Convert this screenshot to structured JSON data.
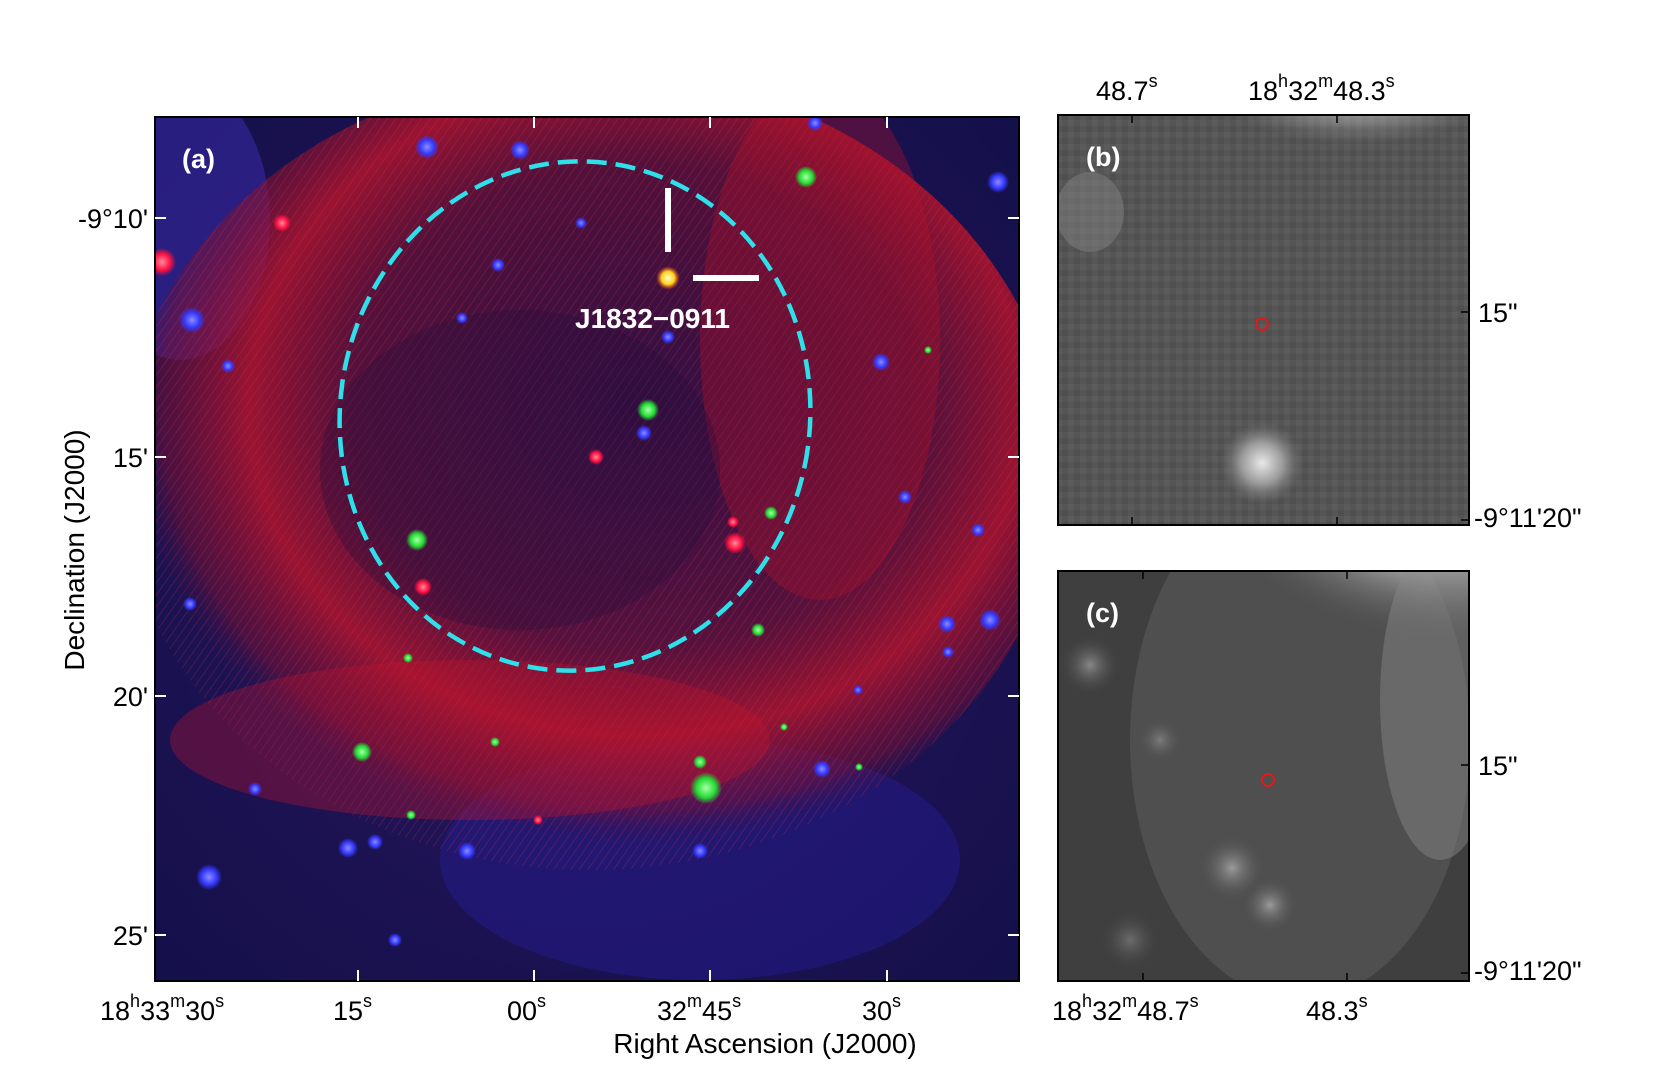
{
  "panel_a": {
    "label": "(a)",
    "source_label": "J1832−0911",
    "x_axis_label": "Right Ascension (J2000)",
    "y_axis_label": "Declination (J2000)",
    "x_ticks": [
      {
        "main": "18",
        "s1": "h",
        "mid": "33",
        "s2": "m",
        "end": "30",
        "s3": "s"
      },
      {
        "main": "15",
        "s3": "s"
      },
      {
        "main": "00",
        "s3": "s"
      },
      {
        "main": "32",
        "s2": "m",
        "end": "45",
        "s3": "s"
      },
      {
        "main": "30",
        "s3": "s"
      }
    ],
    "y_ticks": [
      "-9°10'",
      "15'",
      "20'",
      "25'"
    ],
    "colors": {
      "ellipse": "#2ee0ea",
      "background": "#1a0f4a",
      "shell": "#b0102a"
    }
  },
  "panel_b": {
    "label": "(b)",
    "top_ticks": [
      {
        "main": "48.7",
        "s3": "s"
      },
      {
        "main": "18",
        "s1": "h",
        "mid": "32",
        "s2": "m",
        "end": "48.3",
        "s3": "s"
      }
    ],
    "right_ticks": [
      "15\"",
      "-9°11'20\""
    ]
  },
  "panel_c": {
    "label": "(c)",
    "bottom_ticks": [
      {
        "main": "18",
        "s1": "h",
        "mid": "32",
        "s2": "m",
        "end": "48.7",
        "s3": "s"
      },
      {
        "main": "48.3",
        "s3": "s"
      }
    ],
    "right_ticks": [
      "15\"",
      "-9°11'20\""
    ]
  }
}
